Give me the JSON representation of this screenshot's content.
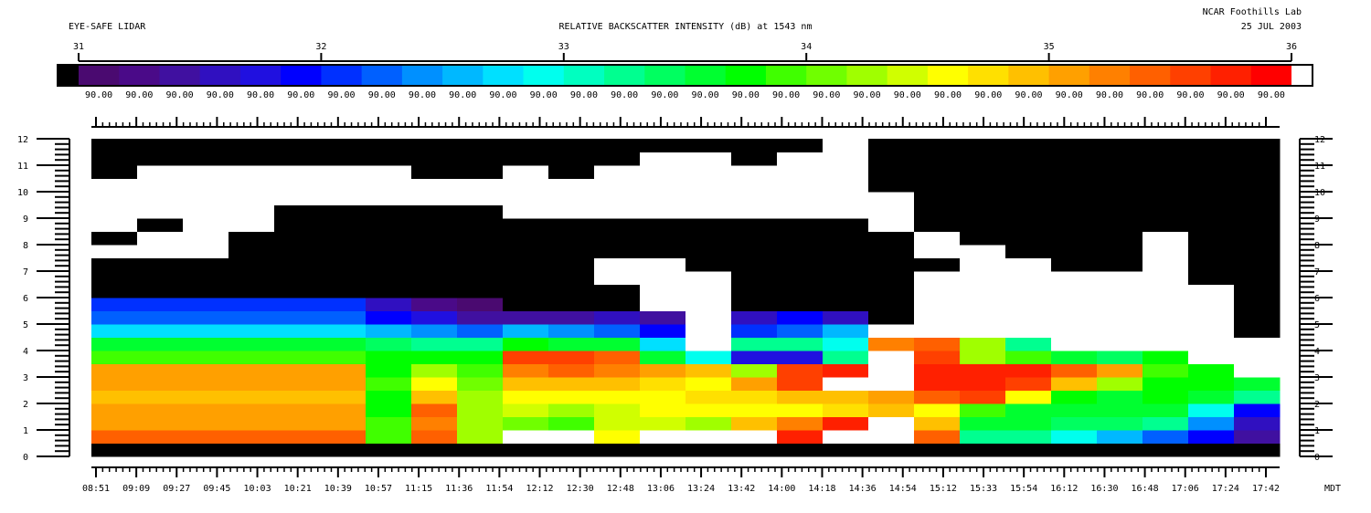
{
  "header": {
    "instrument": "EYE-SAFE LIDAR",
    "title": "RELATIVE BACKSCATTER INTENSITY (dB) at 1543 nm",
    "institution": "NCAR Foothills Lab",
    "date": "25 JUL 2003"
  },
  "colorbar": {
    "scale_ticks": [
      "31",
      "32",
      "33",
      "34",
      "35",
      "36"
    ],
    "labels": [
      "90.00",
      "90.00",
      "90.00",
      "90.00",
      "90.00",
      "90.00",
      "90.00",
      "90.00",
      "90.00",
      "90.00",
      "90.00",
      "90.00",
      "90.00",
      "90.00",
      "90.00",
      "90.00",
      "90.00",
      "90.00",
      "90.00",
      "90.00",
      "90.00",
      "90.00",
      "90.00",
      "90.00",
      "90.00",
      "90.00",
      "90.00",
      "90.00",
      "90.00",
      "90.00"
    ],
    "below_color": "#000000",
    "above_color": "#ffffff",
    "colors": [
      "#4a0a70",
      "#4a0a88",
      "#4010a0",
      "#3010c0",
      "#2010e0",
      "#0000ff",
      "#0030ff",
      "#0060ff",
      "#0090ff",
      "#00b8ff",
      "#00e0ff",
      "#00ffee",
      "#00ffc0",
      "#00ff90",
      "#00ff60",
      "#00ff30",
      "#00ff00",
      "#40ff00",
      "#70ff00",
      "#a0ff00",
      "#d0ff00",
      "#ffff00",
      "#ffe000",
      "#ffc000",
      "#ffa000",
      "#ff8000",
      "#ff6000",
      "#ff4000",
      "#ff2000",
      "#ff0000"
    ]
  },
  "chart_data": {
    "type": "heatmap",
    "title": "RELATIVE BACKSCATTER INTENSITY (dB) at 1543 nm",
    "x_tick_labels": [
      "08:51",
      "09:09",
      "09:27",
      "09:45",
      "10:03",
      "10:21",
      "10:39",
      "10:57",
      "11:15",
      "11:36",
      "11:54",
      "12:12",
      "12:30",
      "12:48",
      "13:06",
      "13:24",
      "13:42",
      "14:00",
      "14:18",
      "14:36",
      "14:54",
      "15:12",
      "15:33",
      "15:54",
      "16:12",
      "16:30",
      "16:48",
      "17:06",
      "17:24",
      "17:42"
    ],
    "x_unit_label": "MDT",
    "y_tick_labels": [
      "0",
      "1",
      "2",
      "3",
      "4",
      "5",
      "6",
      "7",
      "8",
      "9",
      "10",
      "11",
      "12"
    ],
    "ylim": [
      0,
      12
    ],
    "value_encoding": "colorbar level: 0 = below scale (black), 1-30 = colorbar steps, 31 = above scale (white)",
    "rows_bottom_to_top_km_step": 0.5,
    "grid": [
      [
        0,
        0,
        0,
        0,
        0,
        0,
        0,
        0,
        0,
        0,
        0,
        0,
        0,
        0,
        0,
        0,
        0,
        0,
        0,
        0,
        0,
        0,
        0,
        0,
        0,
        0
      ],
      [
        27,
        27,
        27,
        27,
        27,
        27,
        18,
        27,
        20,
        31,
        31,
        22,
        31,
        31,
        31,
        29,
        31,
        31,
        27,
        14,
        14,
        12,
        10,
        8,
        6,
        3
      ],
      [
        25,
        25,
        25,
        25,
        25,
        25,
        18,
        26,
        20,
        19,
        18,
        21,
        21,
        20,
        24,
        26,
        29,
        31,
        24,
        16,
        16,
        15,
        15,
        14,
        9,
        4
      ],
      [
        25,
        25,
        25,
        25,
        25,
        25,
        17,
        27,
        20,
        21,
        20,
        21,
        22,
        22,
        22,
        22,
        23,
        24,
        22,
        18,
        16,
        16,
        16,
        16,
        12,
        6
      ],
      [
        24,
        24,
        24,
        24,
        24,
        24,
        17,
        24,
        20,
        22,
        22,
        22,
        22,
        23,
        23,
        24,
        24,
        25,
        27,
        28,
        22,
        17,
        16,
        17,
        16,
        14
      ],
      [
        25,
        25,
        25,
        25,
        25,
        25,
        18,
        22,
        19,
        24,
        24,
        24,
        23,
        22,
        25,
        28,
        31,
        31,
        29,
        29,
        28,
        24,
        20,
        17,
        17,
        16
      ],
      [
        25,
        25,
        25,
        25,
        25,
        25,
        17,
        20,
        18,
        26,
        27,
        26,
        25,
        24,
        20,
        28,
        29,
        31,
        29,
        29,
        29,
        27,
        25,
        18,
        17,
        31
      ],
      [
        18,
        18,
        18,
        18,
        18,
        18,
        17,
        17,
        17,
        28,
        28,
        27,
        16,
        12,
        5,
        5,
        14,
        31,
        28,
        20,
        18,
        16,
        15,
        17,
        31,
        31
      ],
      [
        16,
        16,
        16,
        16,
        16,
        16,
        15,
        14,
        14,
        17,
        16,
        16,
        11,
        31,
        14,
        14,
        12,
        26,
        27,
        20,
        14,
        31,
        31,
        31,
        31,
        31
      ],
      [
        11,
        11,
        11,
        11,
        11,
        11,
        10,
        9,
        8,
        10,
        9,
        8,
        6,
        31,
        7,
        8,
        10,
        31,
        31,
        31,
        31,
        31,
        31,
        31,
        31,
        0
      ],
      [
        8,
        8,
        8,
        8,
        8,
        8,
        6,
        5,
        3,
        3,
        3,
        4,
        3,
        31,
        4,
        6,
        4,
        0,
        31,
        31,
        31,
        31,
        31,
        31,
        31,
        0
      ],
      [
        7,
        7,
        7,
        7,
        7,
        7,
        4,
        2,
        1,
        0,
        0,
        0,
        31,
        31,
        0,
        0,
        0,
        0,
        31,
        31,
        31,
        31,
        31,
        31,
        31,
        0
      ],
      [
        0,
        0,
        0,
        0,
        0,
        0,
        0,
        0,
        0,
        0,
        0,
        0,
        31,
        31,
        0,
        0,
        0,
        0,
        31,
        31,
        31,
        31,
        31,
        31,
        31,
        0
      ],
      [
        0,
        0,
        0,
        0,
        0,
        0,
        0,
        0,
        0,
        0,
        0,
        31,
        31,
        31,
        0,
        0,
        0,
        0,
        31,
        31,
        31,
        31,
        31,
        31,
        0,
        0
      ],
      [
        0,
        0,
        0,
        0,
        0,
        0,
        0,
        0,
        0,
        0,
        0,
        31,
        31,
        0,
        0,
        0,
        0,
        0,
        0,
        31,
        31,
        0,
        0,
        31,
        0,
        0
      ],
      [
        31,
        31,
        31,
        0,
        0,
        0,
        0,
        0,
        0,
        0,
        0,
        0,
        0,
        0,
        0,
        0,
        0,
        0,
        31,
        31,
        0,
        0,
        0,
        31,
        0,
        0
      ],
      [
        0,
        31,
        31,
        0,
        0,
        0,
        0,
        0,
        0,
        0,
        0,
        0,
        0,
        0,
        0,
        0,
        0,
        0,
        31,
        0,
        0,
        0,
        0,
        31,
        0,
        0
      ],
      [
        31,
        0,
        31,
        31,
        0,
        0,
        0,
        0,
        0,
        0,
        0,
        0,
        0,
        0,
        0,
        0,
        0,
        31,
        0,
        0,
        0,
        0,
        0,
        0,
        0,
        0
      ],
      [
        31,
        31,
        31,
        31,
        0,
        0,
        0,
        0,
        0,
        31,
        31,
        31,
        31,
        31,
        31,
        31,
        31,
        31,
        0,
        0,
        0,
        0,
        0,
        0,
        0,
        0
      ],
      [
        31,
        31,
        31,
        31,
        31,
        31,
        31,
        31,
        31,
        31,
        31,
        31,
        31,
        31,
        31,
        31,
        31,
        31,
        0,
        0,
        0,
        0,
        0,
        0,
        0,
        0
      ],
      [
        31,
        31,
        31,
        31,
        31,
        31,
        31,
        31,
        31,
        31,
        31,
        31,
        31,
        31,
        31,
        31,
        31,
        0,
        0,
        0,
        0,
        0,
        0,
        0,
        0,
        0
      ],
      [
        0,
        31,
        31,
        31,
        31,
        31,
        31,
        0,
        0,
        31,
        0,
        31,
        31,
        31,
        31,
        31,
        31,
        0,
        0,
        0,
        0,
        0,
        0,
        0,
        0,
        0
      ],
      [
        0,
        0,
        0,
        0,
        0,
        0,
        0,
        0,
        0,
        0,
        0,
        0,
        31,
        31,
        0,
        31,
        31,
        0,
        0,
        0,
        0,
        0,
        0,
        0,
        0,
        0
      ],
      [
        0,
        0,
        0,
        0,
        0,
        0,
        0,
        0,
        0,
        0,
        0,
        0,
        0,
        0,
        0,
        0,
        31,
        0,
        0,
        0,
        0,
        0,
        0,
        0,
        0,
        0
      ]
    ]
  }
}
